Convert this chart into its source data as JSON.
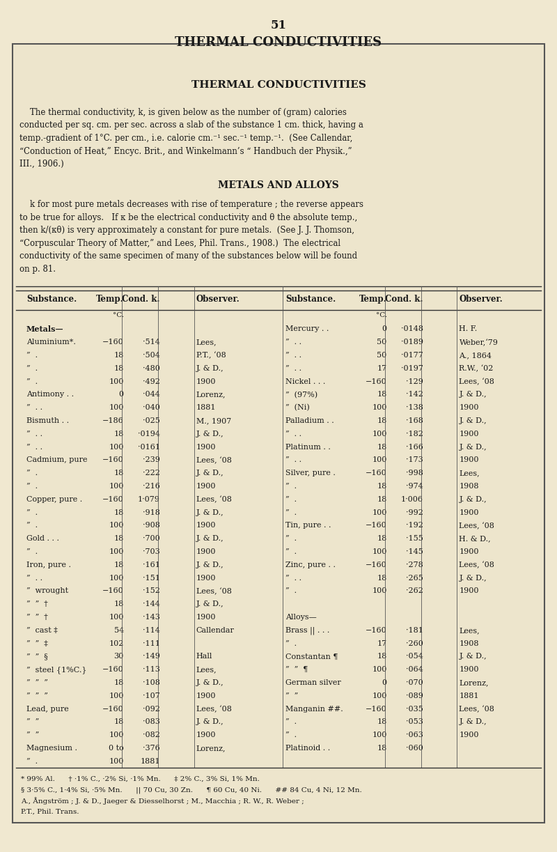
{
  "page_number": "51",
  "page_title": "THERMAL CONDUCTIVITIES",
  "bg_color": "#f0e8d0",
  "box_bg": "#ede5cc",
  "inner_title": "THERMAL CONDUCTIVITIES",
  "para1": "    The thermal conductivity, k, is given below as the number of (gram) calories\nconducted per sq. cm. per sec. across a slab of the substance 1 cm. thick, having a\ntemp.-gradient of 1°C. per cm., i.e. calorie cm.⁻¹ sec.⁻¹ temp.⁻¹.  (See Callendar,\n“Conduction of Heat,” Encyc. Brit., and Winkelmann’s “ Handbuch der Physik.,”\nIII., 1906.)",
  "section_title": "METALS AND ALLOYS",
  "para2": "    k for most pure metals decreases with rise of temperature ; the reverse appears\nto be true for alloys.   If κ be the electrical conductivity and θ the absolute temp.,\nthen k/(κθ) is very approximately a constant for pure metals.  (See J. J. Thomson,\n“Corpuscular Theory of Matter,” and Lees, Phil. Trans., 1908.)  The electrical\nconductivity of the same specimen of many of the substances below will be found\non p. 81.",
  "col_headers": [
    "Substance.",
    "Temp.",
    "Cond. k.",
    "Observer.",
    "Substance.",
    "Temp.",
    "Cond. k.",
    "Observer."
  ],
  "col_header_note_left": "°C.",
  "col_header_note_right": "°C.",
  "table_rows": [
    [
      "Metals—",
      "",
      "",
      "",
      "Mercury . .",
      "0",
      "·0148",
      "H. F."
    ],
    [
      "Aluminium*.",
      "−160",
      "·514",
      "Lees,",
      "”  . .",
      "50",
      "·0189",
      "Weber,‘79"
    ],
    [
      "”  .",
      "18",
      "·504",
      "P.T., ‘08",
      "”  . .",
      "50",
      "·0177",
      "A., 1864"
    ],
    [
      "”  .",
      "18",
      "·480",
      "J. & D.,",
      "”  . .",
      "17",
      "·0197",
      "R.W., ‘02"
    ],
    [
      "”  .",
      "100",
      "·492",
      "1900",
      "Nickel . . .",
      "−160",
      "·129",
      "Lees, ‘08"
    ],
    [
      "Antimony . .",
      "0",
      "·044",
      "Lorenz,",
      "”  (97%)",
      "18",
      "·142",
      "J. & D.,"
    ],
    [
      "”  . .",
      "100",
      "·040",
      "1881",
      "”  (Ni)",
      "100",
      "·138",
      "1900"
    ],
    [
      "Bismuth . .",
      "−186",
      "·025",
      "M., 1907",
      "Palladium . .",
      "18",
      "·168",
      "J. & D.,"
    ],
    [
      "”  . .",
      "18",
      "·0194",
      "J. & D.,",
      "”  . .",
      "100",
      "·182",
      "1900"
    ],
    [
      "”  . .",
      "100",
      "·0161",
      "1900",
      "Platinum . .",
      "18",
      "·166",
      "J. & D.,"
    ],
    [
      "Cadmium, pure",
      "−160",
      "·239",
      "Lees, ‘08",
      "”  . .",
      "100",
      "·173",
      "1900"
    ],
    [
      "”  .",
      "18",
      "·222",
      "J. & D.,",
      "Silver, pure .",
      "−160",
      "·998",
      "Lees,"
    ],
    [
      "”  .",
      "100",
      "·216",
      "1900",
      "”  .",
      "18",
      "·974",
      "1908"
    ],
    [
      "Copper, pure .",
      "−160",
      "1·079",
      "Lees, ‘08",
      "”  .",
      "18",
      "1·006",
      "J. & D.,"
    ],
    [
      "”  .",
      "18",
      "·918",
      "J. & D.,",
      "”  .",
      "100",
      "·992",
      "1900"
    ],
    [
      "”  .",
      "100",
      "·908",
      "1900",
      "Tin, pure . .",
      "−160",
      "·192",
      "Lees, ‘08"
    ],
    [
      "Gold . . .",
      "18",
      "·700",
      "J. & D.,",
      "”  .",
      "18",
      "·155",
      "H. & D.,"
    ],
    [
      "”  .",
      "100",
      "·703",
      "1900",
      "”  .",
      "100",
      "·145",
      "1900"
    ],
    [
      "Iron, pure .",
      "18",
      "·161",
      "J. & D.,",
      "Zinc, pure . .",
      "−160",
      "·278",
      "Lees, ‘08"
    ],
    [
      "”  . .",
      "100",
      "·151",
      "1900",
      "”  . .",
      "18",
      "·265",
      "J. & D.,"
    ],
    [
      "”  wrought",
      "−160",
      "·152",
      "Lees, ‘08",
      "”  .",
      "100",
      "·262",
      "1900"
    ],
    [
      "”  ”  †",
      "18",
      "·144",
      "J. & D.,",
      "",
      "",
      "",
      ""
    ],
    [
      "”  ”  †",
      "100",
      "·143",
      "1900",
      "Alloys—",
      "",
      "",
      ""
    ],
    [
      "”  cast ‡",
      "54",
      "·114",
      "Callendar",
      "Brass || . . .",
      "−160",
      "·181",
      "Lees,"
    ],
    [
      "”  ”  ‡",
      "102",
      "·111",
      "",
      "”  .",
      "17",
      "·260",
      "1908"
    ],
    [
      "”  ”  §",
      "30",
      "·149",
      "Hall",
      "Constantan ¶",
      "18",
      "·054",
      "J. & D.,"
    ],
    [
      "”  steel {1%C.}",
      "−160",
      "·113",
      "Lees,",
      "”  ”  ¶",
      "100",
      "·064",
      "1900"
    ],
    [
      "”  ”  ”",
      "18",
      "·108",
      "J. & D.,",
      "German silver",
      "0",
      "·070",
      "Lorenz,"
    ],
    [
      "”  ”  ”",
      "100",
      "·107",
      "1900",
      "”  ”",
      "100",
      "·089",
      "1881"
    ],
    [
      "Lead, pure",
      "−160",
      "·092",
      "Lees, ‘08",
      "Manganin ##.",
      "−160",
      "·035",
      "Lees, ‘08"
    ],
    [
      "”  ”",
      "18",
      "·083",
      "J. & D.,",
      "”  .",
      "18",
      "·053",
      "J. & D.,"
    ],
    [
      "”  ”",
      "100",
      "·082",
      "1900",
      "”  .",
      "100",
      "·063",
      "1900"
    ],
    [
      "Magnesium .",
      "0 to",
      "·376",
      "Lorenz,",
      "Platinoid . .",
      "18",
      "·060",
      ""
    ],
    [
      "”  .",
      "100",
      "1881",
      "",
      "",
      "",
      "",
      ""
    ]
  ],
  "footnotes": [
    "* 99% Al.      † ·1% C., ·2% Si, ·1% Mn.      ‡ 2% C., 3% Si, 1% Mn.",
    "§ 3·5% C., 1·4% Si, ·5% Mn.      || 70 Cu, 30 Zn.      ¶ 60 Cu, 40 Ni.      ## 84 Cu, 4 Ni, 12 Mn.",
    "A., Ångström ; J. & D., Jaeger & Diesselhorst ; M., Macchia ; R. W., R. Weber ;",
    "P.T., Phil. Trans."
  ],
  "font_size_page_num": 12,
  "font_size_page_title": 13,
  "font_size_inner_title": 11,
  "font_size_section": 10,
  "font_size_body": 8.5,
  "font_size_table_header": 8.5,
  "font_size_table": 8.0,
  "font_size_footnote": 7.5
}
